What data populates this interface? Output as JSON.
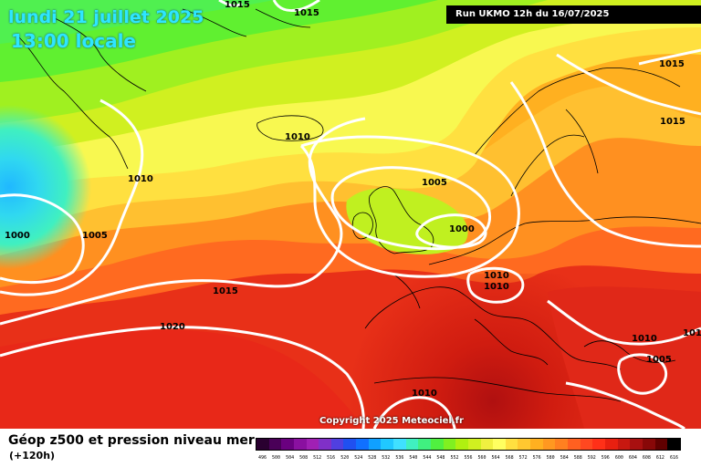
{
  "header": {
    "date": "lundi 21 juillet 2025",
    "time": "13:00 locale",
    "run": "Run UKMO 12h du 16/07/2025"
  },
  "copyright": "Copyright 2025 Meteociel.fr",
  "footer": {
    "title": "Géop z500 et pression niveau mer",
    "subtitle": "(+120h)"
  },
  "legend": {
    "colors": [
      "#2a0030",
      "#4a0058",
      "#6a0080",
      "#8a10a0",
      "#a020b4",
      "#8030c8",
      "#5040e0",
      "#2050f0",
      "#1070ff",
      "#10a0ff",
      "#20c8ff",
      "#40e0ff",
      "#40f0c0",
      "#40f080",
      "#50f040",
      "#80f020",
      "#b0f010",
      "#d0f020",
      "#f0f040",
      "#ffff60",
      "#ffe040",
      "#ffc830",
      "#ffb020",
      "#ff9820",
      "#ff8020",
      "#ff6020",
      "#ff4820",
      "#ff3018",
      "#e82010",
      "#c81810",
      "#a81010",
      "#880808",
      "#600000",
      "#000000"
    ],
    "ticks": [
      "496",
      "500",
      "504",
      "508",
      "512",
      "516",
      "520",
      "524",
      "528",
      "532",
      "536",
      "540",
      "544",
      "548",
      "552",
      "556",
      "560",
      "564",
      "568",
      "572",
      "576",
      "580",
      "584",
      "588",
      "592",
      "596",
      "600",
      "604",
      "608",
      "612",
      "616"
    ]
  },
  "map": {
    "isobar_labels": [
      {
        "text": "1015"
      },
      {
        "text": "1015"
      },
      {
        "text": "1015"
      },
      {
        "text": "1015"
      },
      {
        "text": "1010"
      },
      {
        "text": "1010"
      },
      {
        "text": "1005"
      },
      {
        "text": "1000"
      },
      {
        "text": "1000"
      },
      {
        "text": "1005"
      },
      {
        "text": "1015"
      },
      {
        "text": "1020"
      },
      {
        "text": "1010"
      },
      {
        "text": "1010"
      },
      {
        "text": "1010"
      },
      {
        "text": "1010"
      },
      {
        "text": "1005"
      },
      {
        "text": "1010"
      }
    ]
  }
}
